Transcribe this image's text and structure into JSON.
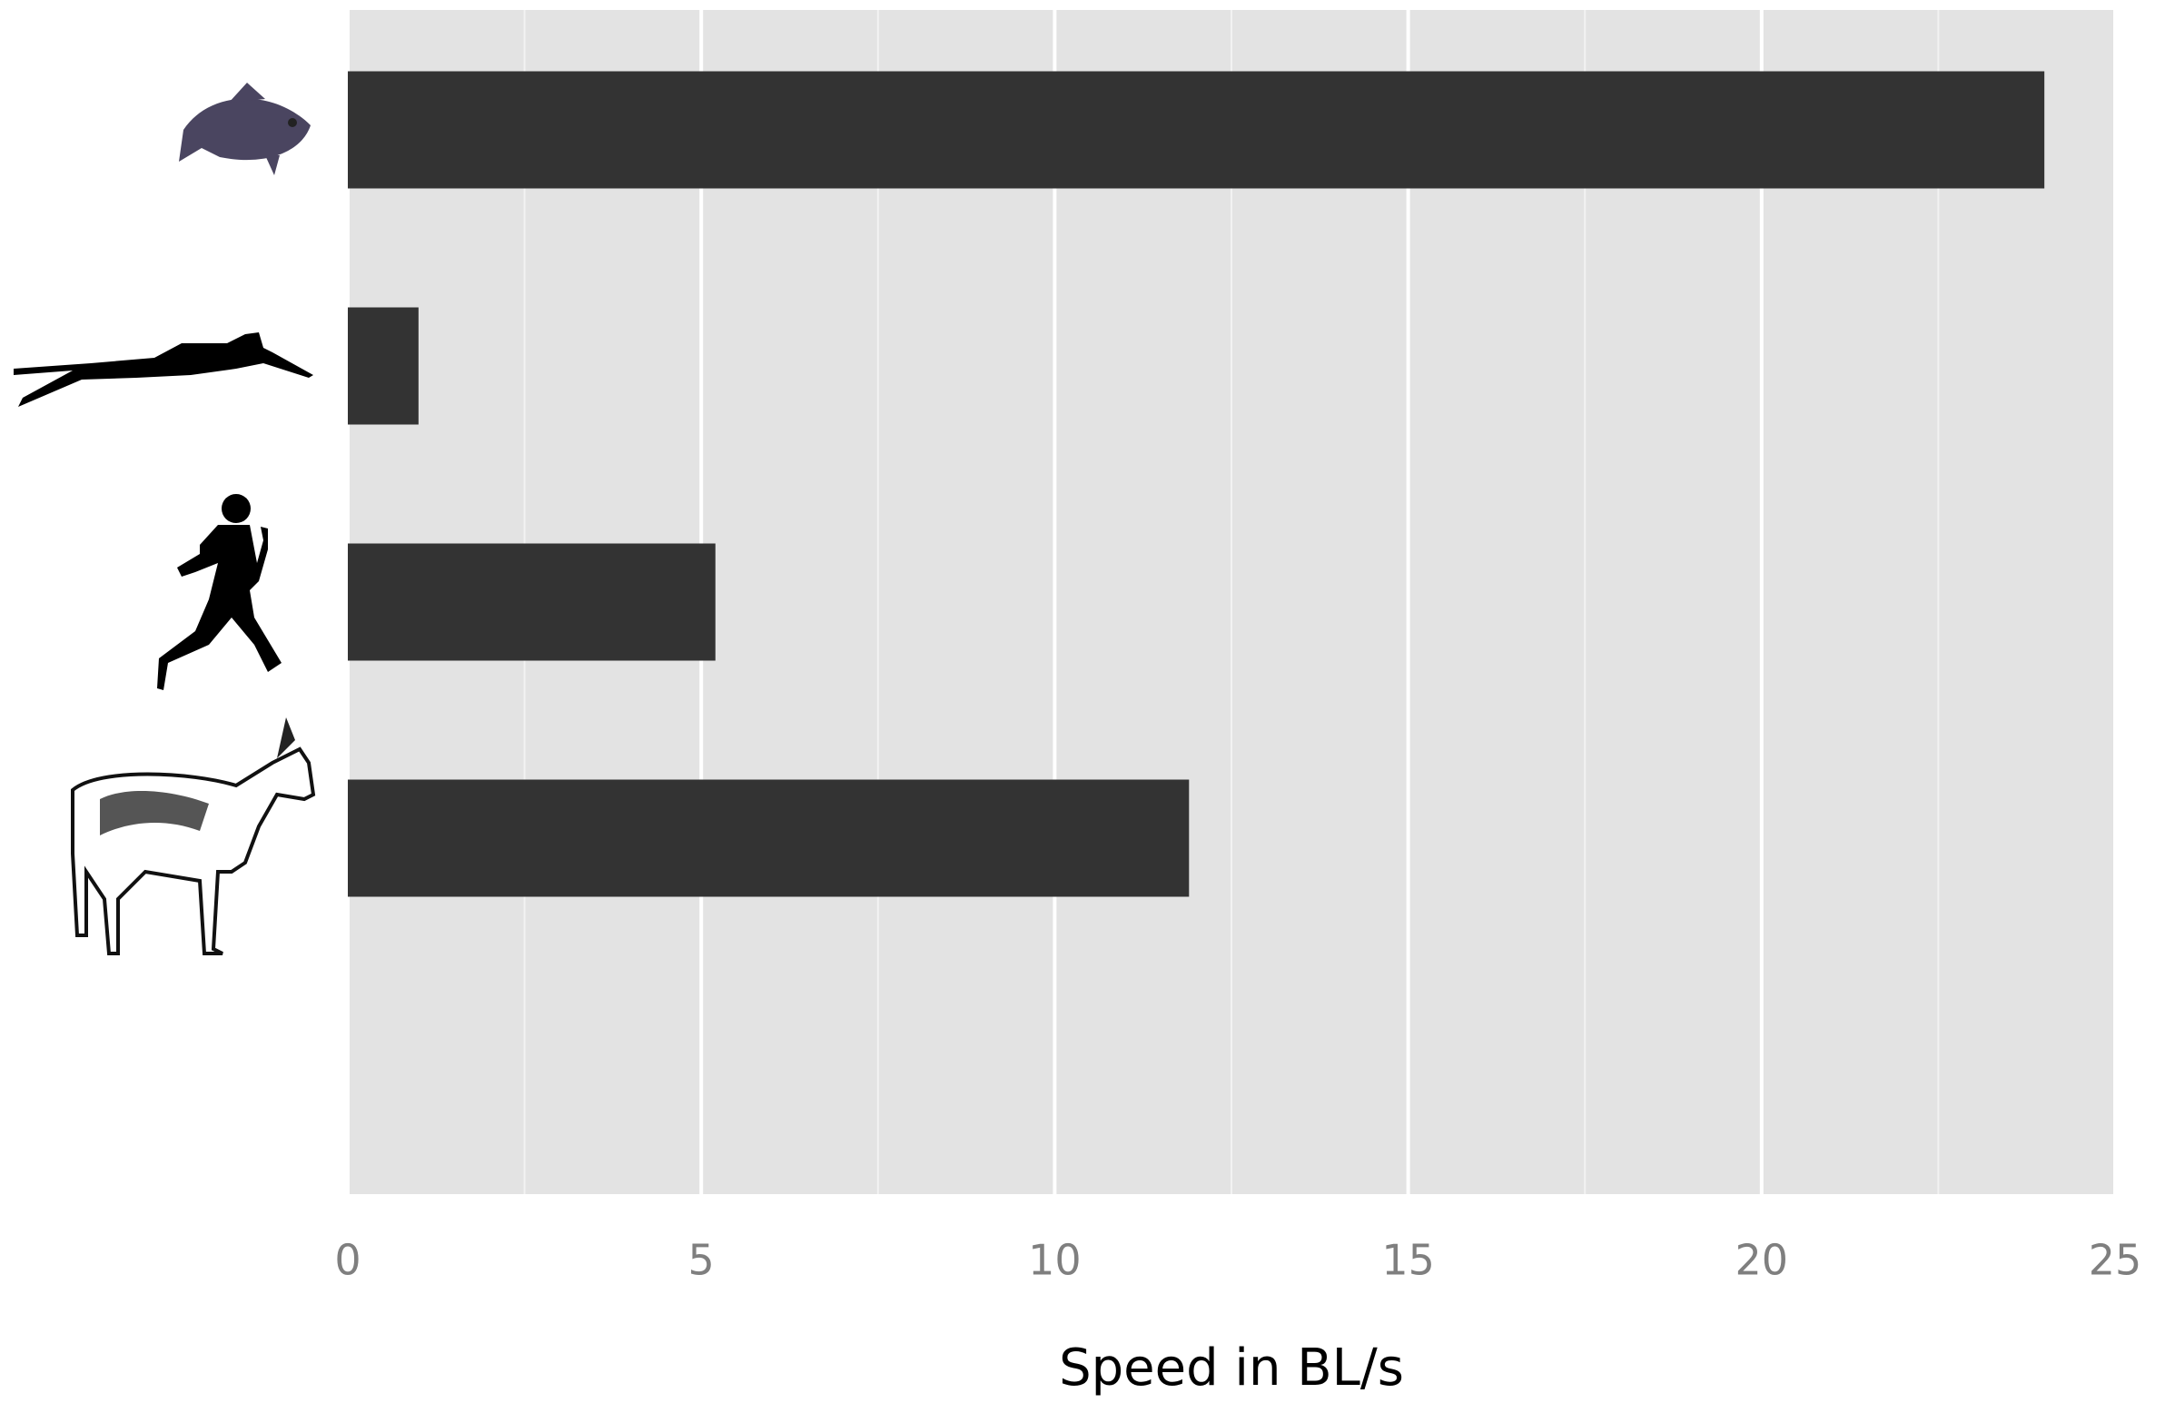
{
  "chart_data": {
    "type": "barh",
    "xlabel": "Speed in BL/s",
    "categories": [
      null,
      null,
      null,
      null
    ],
    "values": [
      24.0,
      1.0,
      5.2,
      11.9
    ],
    "color": "#333333",
    "xlim": [
      0,
      25
    ],
    "xticks": [
      0,
      5,
      10,
      15,
      20,
      25
    ],
    "grid": true
  }
}
